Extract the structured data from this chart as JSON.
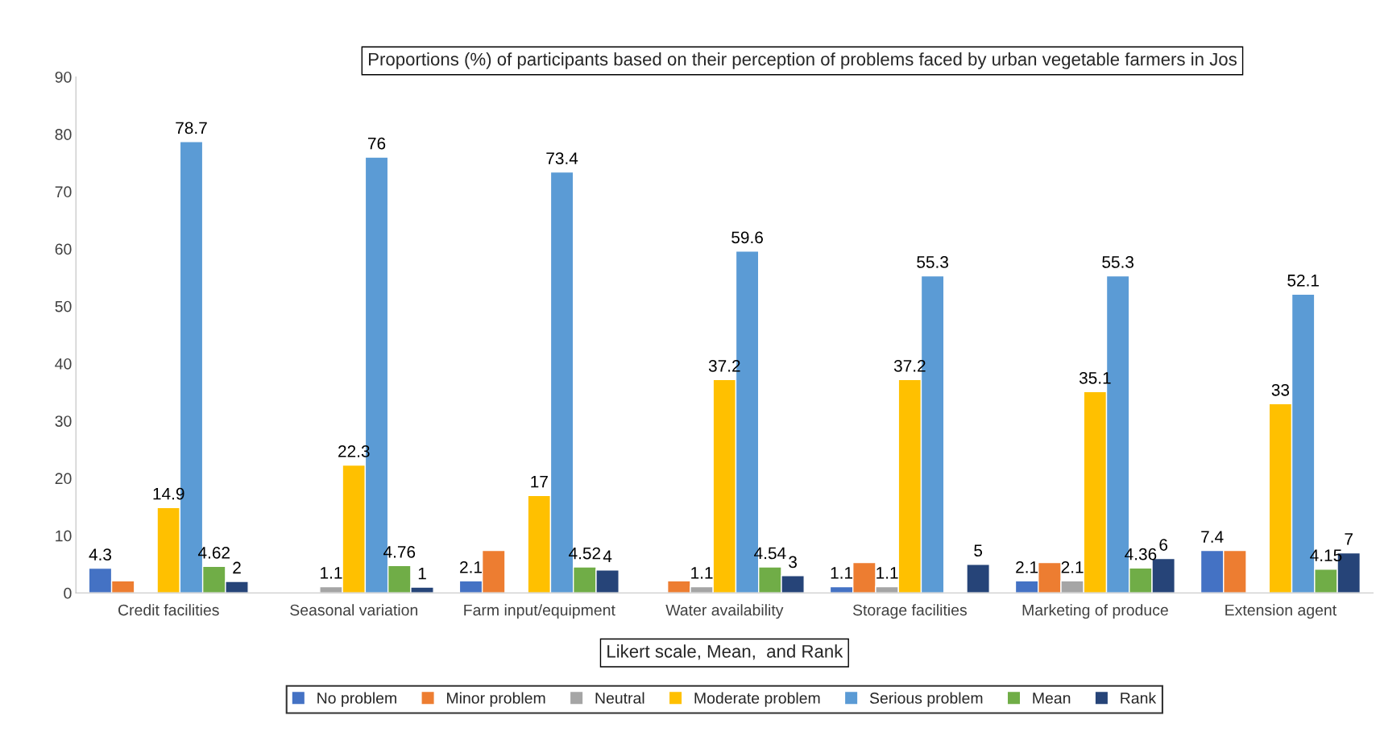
{
  "chart_data": {
    "type": "bar",
    "title": "Proportions (%) of participants based on their perception of problems faced by urban vegetable farmers in Jos",
    "xlabel": "Likert scale, Mean,  and Rank",
    "categories": [
      "Credit facilities",
      "Seasonal variation",
      "Farm input/equipment",
      "Water availability",
      "Storage facilities",
      "Marketing of produce",
      "Extension agent"
    ],
    "series": [
      {
        "name": "No problem",
        "color": "#4472c4",
        "values": [
          4.3,
          null,
          2.1,
          null,
          1.1,
          2.1,
          7.4
        ],
        "value_labels": [
          "4.3",
          null,
          "2.1",
          null,
          "1.1",
          "2.1",
          "7.4"
        ]
      },
      {
        "name": "Minor problem",
        "color": "#ed7d31",
        "values": [
          2.1,
          null,
          7.4,
          2.1,
          5.3,
          5.3,
          7.4
        ],
        "value_labels": [
          null,
          null,
          null,
          null,
          null,
          null,
          null
        ]
      },
      {
        "name": "Neutral",
        "color": "#a5a5a5",
        "values": [
          null,
          1.1,
          null,
          1.1,
          1.1,
          2.1,
          null
        ],
        "value_labels": [
          null,
          "1.1",
          null,
          "1.1",
          "1.1",
          "2.1",
          null
        ]
      },
      {
        "name": "Moderate problem",
        "color": "#ffc000",
        "values": [
          14.9,
          22.3,
          17,
          37.2,
          37.2,
          35.1,
          33
        ],
        "value_labels": [
          "14.9",
          "22.3",
          "17",
          "37.2",
          "37.2",
          "35.1",
          "33"
        ]
      },
      {
        "name": "Serious problem",
        "color": "#5b9bd5",
        "values": [
          78.7,
          76,
          73.4,
          59.6,
          55.3,
          55.3,
          52.1
        ],
        "value_labels": [
          "78.7",
          "76",
          "73.4",
          "59.6",
          "55.3",
          "55.3",
          "52.1"
        ]
      },
      {
        "name": "Mean",
        "color": "#70ad47",
        "values": [
          4.62,
          4.76,
          4.52,
          4.54,
          null,
          4.36,
          4.15
        ],
        "value_labels": [
          "4.62",
          "4.76",
          "4.52",
          "4.54",
          null,
          "4.36",
          "4.15"
        ]
      },
      {
        "name": "Rank",
        "color": "#264478",
        "values": [
          2,
          1,
          4,
          3,
          5,
          6,
          7
        ],
        "value_labels": [
          "2",
          "1",
          "4",
          "3",
          "5",
          "6",
          "7"
        ]
      }
    ],
    "ylim": [
      0,
      90
    ],
    "yticks": [
      0,
      10,
      20,
      30,
      40,
      50,
      60,
      70,
      80,
      90
    ],
    "grid": false,
    "legend": "bottom"
  }
}
